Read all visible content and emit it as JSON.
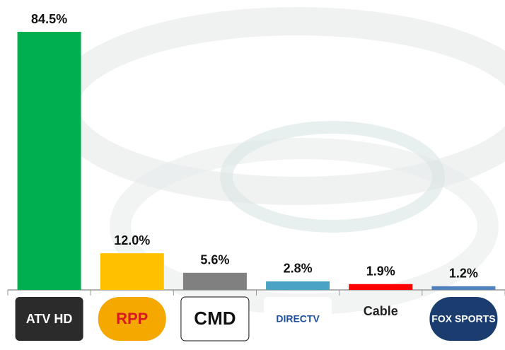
{
  "chart_data": {
    "type": "bar",
    "categories": [
      "ATV HD",
      "RPP",
      "CMD",
      "DIRECTV",
      "Cable",
      "FOX SPORTS"
    ],
    "values": [
      84.5,
      12.0,
      5.6,
      2.8,
      1.9,
      1.2
    ],
    "value_labels": [
      "84.5%",
      "12.0%",
      "5.6%",
      "2.8%",
      "1.9%",
      "1.2%"
    ],
    "colors": [
      "#00b050",
      "#ffc000",
      "#808080",
      "#4aa3c4",
      "#ff0000",
      "#4f81bd"
    ]
  }
}
